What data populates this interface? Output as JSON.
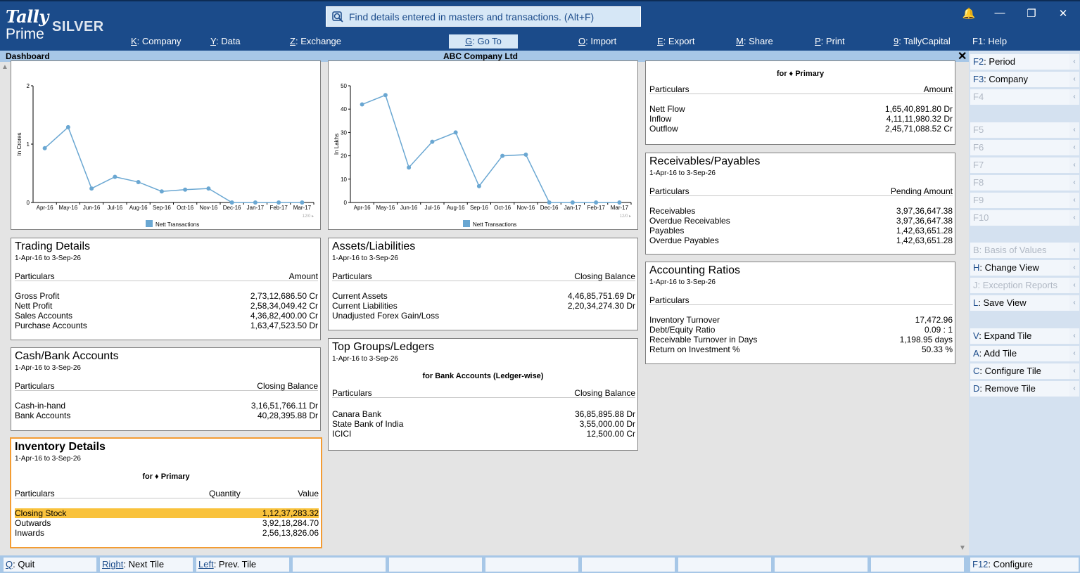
{
  "brand": {
    "name": "Tally",
    "product": "Prime",
    "edition": "SILVER"
  },
  "search": {
    "placeholder": "Find details entered in masters and transactions. (Alt+F)"
  },
  "window_buttons": {
    "notify": "🔔",
    "minimize": "—",
    "restore": "❐",
    "close": "✕"
  },
  "menu": [
    {
      "key": "K",
      "label": "Company"
    },
    {
      "key": "Y",
      "label": "Data"
    },
    {
      "key": "Z",
      "label": "Exchange"
    },
    {
      "key": "G",
      "label": "Go To"
    },
    {
      "key": "O",
      "label": "Import"
    },
    {
      "key": "E",
      "label": "Export"
    },
    {
      "key": "M",
      "label": "Share"
    },
    {
      "key": "P",
      "label": "Print"
    },
    {
      "key": "9",
      "label": "TallyCapital"
    },
    {
      "key": "F1",
      "label": "Help"
    }
  ],
  "subbar": {
    "left": "Dashboard",
    "center": "ABC Company Ltd",
    "close": "✕"
  },
  "chart_data": [
    {
      "type": "line",
      "ylabel": "In Crores",
      "legend": "Nett Transactions",
      "ylim": [
        0,
        2
      ],
      "yticks": [
        "0",
        "1",
        "2"
      ],
      "categories": [
        "Apr-16",
        "May-16",
        "Jun-16",
        "Jul-16",
        "Aug-16",
        "Sep-16",
        "Oct-16",
        "Nov-16",
        "Dec-16",
        "Jan-17",
        "Feb-17",
        "Mar-17"
      ],
      "values": [
        0.93,
        1.29,
        0.24,
        0.44,
        0.35,
        0.19,
        0.22,
        0.24,
        0,
        0,
        0,
        0
      ],
      "footnote": "12/0 ▸"
    },
    {
      "type": "line",
      "ylabel": "In Lakhs",
      "legend": "Nett Transactions",
      "ylim": [
        0,
        50
      ],
      "yticks": [
        "0",
        "10",
        "20",
        "30",
        "40",
        "50"
      ],
      "categories": [
        "Apr-16",
        "May-16",
        "Jun-16",
        "Jul-16",
        "Aug-16",
        "Sep-16",
        "Oct-16",
        "Nov-16",
        "Dec-16",
        "Jan-17",
        "Feb-17",
        "Mar-17"
      ],
      "values": [
        42,
        46,
        15,
        26,
        30,
        7,
        20,
        20.5,
        0,
        0,
        0,
        0
      ],
      "footnote": "12/0 ▸"
    }
  ],
  "tiles": {
    "trading": {
      "title": "Trading Details",
      "period": "1-Apr-16 to 3-Sep-26",
      "col1": "Particulars",
      "col2": "Amount",
      "rows": [
        [
          "Gross Profit",
          "2,73,12,686.50 Cr"
        ],
        [
          "Nett Profit",
          "2,58,34,049.42 Cr"
        ],
        [
          "Sales Accounts",
          "4,36,82,400.00 Cr"
        ],
        [
          "Purchase Accounts",
          "1,63,47,523.50 Dr"
        ]
      ]
    },
    "assets": {
      "title": "Assets/Liabilities",
      "period": "1-Apr-16 to 3-Sep-26",
      "col1": "Particulars",
      "col2": "Closing Balance",
      "rows": [
        [
          "Current Assets",
          "4,46,85,751.69 Dr"
        ],
        [
          "Current Liabilities",
          "2,20,34,274.30 Dr"
        ],
        [
          "Unadjusted Forex Gain/Loss",
          ""
        ]
      ]
    },
    "cashbank": {
      "title": "Cash/Bank Accounts",
      "period": "1-Apr-16 to 3-Sep-26",
      "col1": "Particulars",
      "col2": "Closing Balance",
      "rows": [
        [
          "Cash-in-hand",
          "3,16,51,766.11 Dr"
        ],
        [
          "Bank Accounts",
          "40,28,395.88 Dr"
        ]
      ]
    },
    "topgroups": {
      "title": "Top Groups/Ledgers",
      "period": "1-Apr-16 to 3-Sep-26",
      "sub": "for Bank Accounts (Ledger-wise)",
      "col1": "Particulars",
      "col2": "Closing Balance",
      "rows": [
        [
          "Canara Bank",
          "36,85,895.88 Dr"
        ],
        [
          "State Bank of India",
          "3,55,000.00 Dr"
        ],
        [
          "ICICI",
          "12,500.00 Cr"
        ]
      ]
    },
    "inventory": {
      "title": "Inventory Details",
      "period": "1-Apr-16 to 3-Sep-26",
      "sub": "for ♦ Primary",
      "col1": "Particulars",
      "col2": "Quantity",
      "col3": "Value",
      "rows": [
        [
          "Closing Stock",
          "1,12,37,283.32"
        ],
        [
          "Outwards",
          "3,92,18,284.70"
        ],
        [
          "Inwards",
          "2,56,13,826.06"
        ]
      ]
    },
    "cashflow": {
      "sub": "for ♦ Primary",
      "col1": "Particulars",
      "col2": "Amount",
      "rows": [
        [
          "Nett Flow",
          "1,65,40,891.80 Dr"
        ],
        [
          "Inflow",
          "4,11,11,980.32 Dr"
        ],
        [
          "Outflow",
          "2,45,71,088.52 Cr"
        ]
      ]
    },
    "receivables": {
      "title": "Receivables/Payables",
      "period": "1-Apr-16 to 3-Sep-26",
      "col1": "Particulars",
      "col2": "Pending Amount",
      "rows": [
        [
          "Receivables",
          "3,97,36,647.38"
        ],
        [
          "Overdue Receivables",
          "3,97,36,647.38"
        ],
        [
          "Payables",
          "1,42,63,651.28"
        ],
        [
          "Overdue Payables",
          "1,42,63,651.28"
        ]
      ]
    },
    "ratios": {
      "title": "Accounting Ratios",
      "period": "1-Apr-16 to 3-Sep-26",
      "col1": "Particulars",
      "rows": [
        [
          "Inventory Turnover",
          "17,472.96"
        ],
        [
          "Debt/Equity Ratio",
          "0.09 : 1"
        ],
        [
          "Receivable Turnover in Days",
          "1,198.95 days"
        ],
        [
          "Return on Investment %",
          "50.33 %"
        ]
      ]
    }
  },
  "sidebar": [
    {
      "key": "F2",
      "label": "Period",
      "enabled": true
    },
    {
      "key": "F3",
      "label": "Company",
      "enabled": true
    },
    {
      "key": "F4",
      "label": "",
      "enabled": false
    },
    {
      "key": "F5",
      "label": "",
      "enabled": false
    },
    {
      "key": "F6",
      "label": "",
      "enabled": false
    },
    {
      "key": "F7",
      "label": "",
      "enabled": false
    },
    {
      "key": "F8",
      "label": "",
      "enabled": false
    },
    {
      "key": "F9",
      "label": "",
      "enabled": false
    },
    {
      "key": "F10",
      "label": "",
      "enabled": false
    },
    {
      "key": "B",
      "label": "Basis of Values",
      "enabled": false
    },
    {
      "key": "H",
      "label": "Change View",
      "enabled": true
    },
    {
      "key": "J",
      "label": "Exception Reports",
      "enabled": false
    },
    {
      "key": "L",
      "label": "Save View",
      "enabled": true
    },
    {
      "key": "V",
      "label": "Expand Tile",
      "enabled": true
    },
    {
      "key": "A",
      "label": "Add Tile",
      "enabled": true
    },
    {
      "key": "C",
      "label": "Configure Tile",
      "enabled": true
    },
    {
      "key": "D",
      "label": "Remove Tile",
      "enabled": true
    }
  ],
  "bottom": [
    {
      "key": "Q",
      "label": "Quit"
    },
    {
      "key": "Right",
      "label": "Next Tile"
    },
    {
      "key": "Left",
      "label": "Prev. Tile"
    }
  ],
  "configure": {
    "key": "F12",
    "label": "Configure"
  },
  "colors": {
    "topbar": "#1b4b8a",
    "accent": "#f39c33",
    "highlight": "#f9c23c",
    "chart_line": "#6aa7d2"
  }
}
